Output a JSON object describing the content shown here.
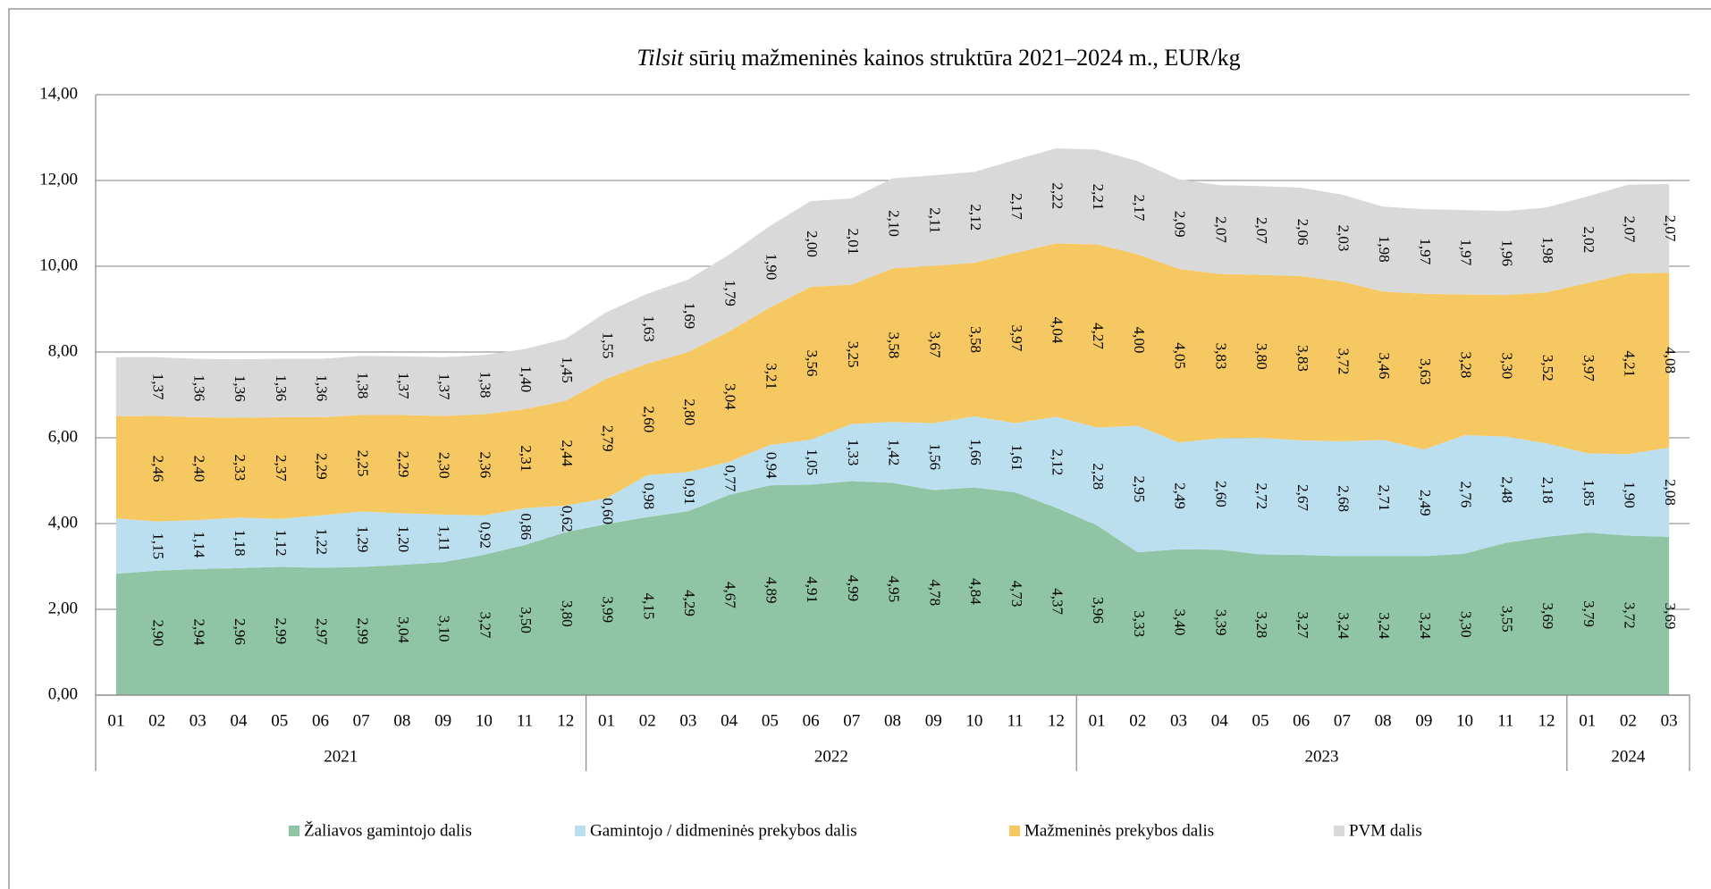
{
  "chart_data": {
    "type": "stacked_area",
    "title_parts": [
      "Tilsit",
      " sūrių mažmeninės kainos struktūra 2021–2024 m., EUR/kg"
    ],
    "categories": [
      "01",
      "02",
      "03",
      "04",
      "05",
      "06",
      "07",
      "08",
      "09",
      "10",
      "11",
      "12",
      "01",
      "02",
      "03",
      "04",
      "05",
      "06",
      "07",
      "08",
      "09",
      "10",
      "11",
      "12",
      "01",
      "02",
      "03",
      "04",
      "05",
      "06",
      "07",
      "08",
      "09",
      "10",
      "11",
      "12",
      "01",
      "02",
      "03"
    ],
    "year_groups": [
      {
        "label": "2021",
        "count": 12
      },
      {
        "label": "2022",
        "count": 12
      },
      {
        "label": "2023",
        "count": 12
      },
      {
        "label": "2024",
        "count": 3
      }
    ],
    "ylim": [
      0,
      14
    ],
    "yticks": [
      {
        "value": 0,
        "label": "0,00"
      },
      {
        "value": 2,
        "label": "2,00"
      },
      {
        "value": 4,
        "label": "4,00"
      },
      {
        "value": 6,
        "label": "6,00"
      },
      {
        "value": 8,
        "label": "8,00"
      },
      {
        "value": 10,
        "label": "10,00"
      },
      {
        "value": 12,
        "label": "12,00"
      },
      {
        "value": 14,
        "label": "14,00"
      }
    ],
    "grid": true,
    "legend": "bottom",
    "series": [
      {
        "name": "Žaliavos gamintojo dalis",
        "color": "#8fc4a4",
        "values": [
          2.83,
          2.9,
          2.94,
          2.96,
          2.99,
          2.97,
          2.99,
          3.04,
          3.1,
          3.27,
          3.5,
          3.8,
          3.99,
          4.15,
          4.29,
          4.67,
          4.89,
          4.91,
          4.99,
          4.95,
          4.78,
          4.84,
          4.73,
          4.37,
          3.96,
          3.33,
          3.4,
          3.39,
          3.28,
          3.27,
          3.24,
          3.24,
          3.24,
          3.3,
          3.55,
          3.69,
          3.79,
          3.72,
          3.69
        ],
        "value_labels": [
          null,
          "2,90",
          "2,94",
          "2,96",
          "2,99",
          "2,97",
          "2,99",
          "3,04",
          "3,10",
          "3,27",
          "3,50",
          "3,80",
          "3,99",
          "4,15",
          "4,29",
          "4,67",
          "4,89",
          "4,91",
          "4,99",
          "4,95",
          "4,78",
          "4,84",
          "4,73",
          "4,37",
          "3,96",
          "3,33",
          "3,40",
          "3,39",
          "3,28",
          "3,27",
          "3,24",
          "3,24",
          "3,24",
          "3,30",
          "3,55",
          "3,69",
          "3,79",
          "3,72",
          "3,69"
        ]
      },
      {
        "name": "Gamintojo / didmeninės prekybos dalis",
        "color": "#bcdff0",
        "values": [
          1.29,
          1.15,
          1.14,
          1.18,
          1.12,
          1.22,
          1.29,
          1.2,
          1.11,
          0.92,
          0.86,
          0.62,
          0.6,
          0.98,
          0.91,
          0.77,
          0.94,
          1.05,
          1.33,
          1.42,
          1.56,
          1.66,
          1.61,
          2.12,
          2.28,
          2.95,
          2.49,
          2.6,
          2.72,
          2.67,
          2.68,
          2.71,
          2.49,
          2.76,
          2.48,
          2.18,
          1.85,
          1.9,
          2.08
        ],
        "value_labels": [
          null,
          "1,15",
          "1,14",
          "1,18",
          "1,12",
          "1,22",
          "1,29",
          "1,20",
          "1,11",
          "0,92",
          "0,86",
          "0,62",
          "0,60",
          "0,98",
          "0,91",
          "0,77",
          "0,94",
          "1,05",
          "1,33",
          "1,42",
          "1,56",
          "1,66",
          "1,61",
          "2,12",
          "2,28",
          "2,95",
          "2,49",
          "2,60",
          "2,72",
          "2,67",
          "2,68",
          "2,71",
          "2,49",
          "2,76",
          "2,48",
          "2,18",
          "1,85",
          "1,90",
          "2,08"
        ]
      },
      {
        "name": "Mažmeninės prekybos dalis",
        "color": "#f5c862",
        "values": [
          2.38,
          2.46,
          2.4,
          2.33,
          2.37,
          2.29,
          2.25,
          2.29,
          2.3,
          2.36,
          2.31,
          2.44,
          2.79,
          2.6,
          2.8,
          3.04,
          3.21,
          3.56,
          3.25,
          3.58,
          3.67,
          3.58,
          3.97,
          4.04,
          4.27,
          4.0,
          4.05,
          3.83,
          3.8,
          3.83,
          3.72,
          3.46,
          3.63,
          3.28,
          3.3,
          3.52,
          3.97,
          4.21,
          4.08
        ],
        "value_labels": [
          null,
          "2,46",
          "2,40",
          "2,33",
          "2,37",
          "2,29",
          "2,25",
          "2,29",
          "2,30",
          "2,36",
          "2,31",
          "2,44",
          "2,79",
          "2,60",
          "2,80",
          "3,04",
          "3,21",
          "3,56",
          "3,25",
          "3,58",
          "3,67",
          "3,58",
          "3,97",
          "4,04",
          "4,27",
          "4,00",
          "4,05",
          "3,83",
          "3,80",
          "3,83",
          "3,72",
          "3,46",
          "3,63",
          "3,28",
          "3,30",
          "3,52",
          "3,97",
          "4,21",
          "4,08"
        ]
      },
      {
        "name": "PVM dalis",
        "color": "#d9d9d9",
        "values": [
          1.38,
          1.37,
          1.36,
          1.36,
          1.36,
          1.36,
          1.38,
          1.37,
          1.37,
          1.38,
          1.4,
          1.45,
          1.55,
          1.63,
          1.69,
          1.79,
          1.9,
          2.0,
          2.01,
          2.1,
          2.11,
          2.12,
          2.17,
          2.22,
          2.21,
          2.17,
          2.09,
          2.07,
          2.07,
          2.06,
          2.03,
          1.98,
          1.97,
          1.97,
          1.96,
          1.98,
          2.02,
          2.07,
          2.07
        ],
        "value_labels": [
          null,
          "1,37",
          "1,36",
          "1,36",
          "1,36",
          "1,36",
          "1,38",
          "1,37",
          "1,37",
          "1,38",
          "1,40",
          "1,45",
          "1,55",
          "1,63",
          "1,69",
          "1,79",
          "1,90",
          "2,00",
          "2,01",
          "2,10",
          "2,11",
          "2,12",
          "2,17",
          "2,22",
          "2,21",
          "2,17",
          "2,09",
          "2,07",
          "2,07",
          "2,06",
          "2,03",
          "1,98",
          "1,97",
          "1,97",
          "1,96",
          "1,98",
          "2,02",
          "2,07",
          "2,07"
        ]
      }
    ]
  }
}
